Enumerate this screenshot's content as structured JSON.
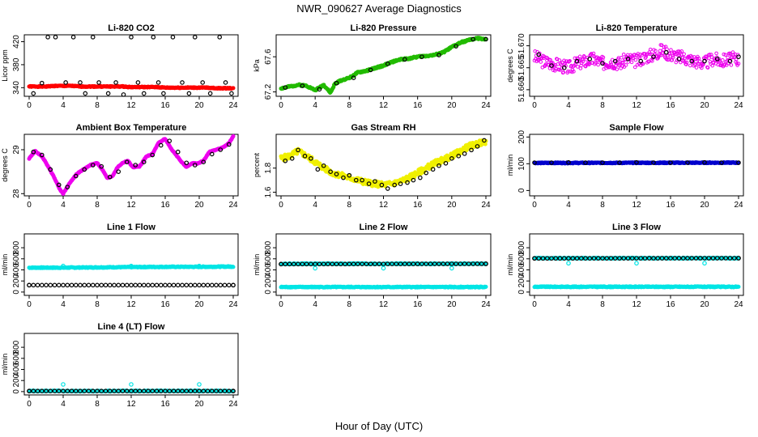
{
  "figure": {
    "title": "NWR_090627  Average Diagnostics",
    "xlabel": "Hour of Day (UTC)"
  },
  "chart_data": [
    {
      "type": "scatter",
      "title": "Li-820 CO2",
      "ylabel": "Licor ppm",
      "xlim": [
        0,
        24
      ],
      "ylim": [
        325,
        432
      ],
      "xticks": [
        0,
        4,
        8,
        12,
        16,
        20,
        24
      ],
      "yticks": [
        340,
        380,
        420
      ],
      "series": [
        {
          "name": "licor",
          "color": "#ff0000",
          "marker": "fill",
          "x": [
            0,
            1,
            2,
            3,
            4,
            5,
            6,
            7,
            8,
            9,
            10,
            11,
            12,
            13,
            14,
            15,
            16,
            17,
            18,
            19,
            20,
            21,
            22,
            23,
            24
          ],
          "y": [
            342,
            342,
            342,
            343,
            343,
            343,
            342,
            342,
            342,
            342,
            342,
            342,
            341,
            341,
            341,
            341,
            340,
            340,
            340,
            340,
            340,
            340,
            339,
            339,
            339
          ]
        },
        {
          "name": "averages",
          "color": "#000000",
          "marker": "open",
          "x": [
            0.5,
            1.5,
            2.2,
            3.1,
            4.3,
            5.2,
            6.0,
            6.6,
            7.5,
            8.2,
            9.3,
            10.2,
            11.1,
            12.0,
            12.8,
            13.5,
            14.6,
            15.2,
            15.8,
            16.9,
            18.0,
            18.8,
            19.5,
            20.4,
            21.3,
            22.4,
            23.1,
            23.8
          ],
          "y": [
            330,
            348,
            428,
            428,
            349,
            428,
            349,
            330,
            428,
            349,
            330,
            349,
            328,
            428,
            349,
            330,
            428,
            349,
            330,
            428,
            349,
            330,
            428,
            349,
            330,
            428,
            349,
            330
          ]
        }
      ]
    },
    {
      "type": "line",
      "title": "Li-820 Pressure",
      "ylabel": "kPa",
      "xlim": [
        0,
        24
      ],
      "ylim": [
        67.15,
        67.85
      ],
      "xticks": [
        0,
        4,
        8,
        12,
        16,
        20,
        24
      ],
      "yticks": [
        67.2,
        67.6
      ],
      "series": [
        {
          "name": "pressure",
          "color": "#22bb00",
          "x": [
            0,
            1,
            2,
            3,
            4,
            5,
            5.8,
            6.3,
            7,
            8,
            9,
            10,
            11,
            12,
            13,
            14,
            15,
            16,
            17,
            18,
            19,
            20,
            21,
            22,
            23,
            24
          ],
          "y": [
            67.24,
            67.26,
            67.28,
            67.27,
            67.22,
            67.28,
            67.19,
            67.29,
            67.33,
            67.36,
            67.42,
            67.44,
            67.47,
            67.5,
            67.54,
            67.57,
            67.58,
            67.6,
            67.61,
            67.62,
            67.65,
            67.71,
            67.76,
            67.79,
            67.81,
            67.8
          ]
        },
        {
          "name": "averages",
          "color": "#000000",
          "x": [
            0.5,
            2.5,
            4.5,
            6.5,
            8.5,
            10.5,
            12.5,
            14.5,
            16.5,
            18.5,
            20.5,
            22.5,
            24
          ],
          "y": [
            67.25,
            67.27,
            67.23,
            67.3,
            67.36,
            67.45,
            67.52,
            67.57,
            67.6,
            67.62,
            67.72,
            67.8,
            67.8
          ]
        }
      ]
    },
    {
      "type": "scatter",
      "title": "Li-820 Temperature",
      "ylabel": "degrees C",
      "xlim": [
        0,
        24
      ],
      "ylim": [
        51.6585,
        51.6725
      ],
      "xticks": [
        0,
        4,
        8,
        12,
        16,
        20,
        24
      ],
      "yticks": [
        51.66,
        51.665,
        51.67
      ],
      "series": [
        {
          "name": "temperature",
          "color": "#ee00ee",
          "x": [
            0,
            1,
            2,
            3,
            4,
            5,
            6,
            7,
            8,
            9,
            10,
            11,
            12,
            13,
            14,
            15,
            16,
            17,
            18,
            19,
            20,
            21,
            22,
            23,
            24
          ],
          "y": [
            51.6675,
            51.6665,
            51.666,
            51.6655,
            51.665,
            51.666,
            51.6665,
            51.667,
            51.666,
            51.6665,
            51.666,
            51.667,
            51.6665,
            51.6675,
            51.668,
            51.669,
            51.668,
            51.6675,
            51.667,
            51.6665,
            51.666,
            51.667,
            51.6665,
            51.667,
            51.667
          ]
        },
        {
          "name": "averages",
          "color": "#000000",
          "x": [
            0.5,
            2,
            3.5,
            5,
            6.5,
            8,
            9.5,
            11,
            12.5,
            14,
            15.5,
            17,
            18.5,
            20,
            21.5,
            23,
            24
          ],
          "y": [
            51.668,
            51.6655,
            51.665,
            51.6665,
            51.667,
            51.666,
            51.6665,
            51.667,
            51.6665,
            51.6675,
            51.6685,
            51.667,
            51.6665,
            51.6665,
            51.667,
            51.6665,
            51.6675
          ]
        }
      ]
    },
    {
      "type": "line",
      "title": "Ambient Box Temperature",
      "ylabel": "degrees C",
      "xlim": [
        0,
        24
      ],
      "ylim": [
        27.95,
        29.35
      ],
      "xticks": [
        0,
        4,
        8,
        12,
        16,
        20,
        24
      ],
      "yticks": [
        28.0,
        29.0
      ],
      "series": [
        {
          "name": "temperature",
          "color": "#ee00ee",
          "x": [
            0,
            0.7,
            1.5,
            2.3,
            3,
            3.6,
            4,
            4.8,
            5.6,
            6.4,
            7.2,
            8,
            8.6,
            9.2,
            9.8,
            10.4,
            11,
            11.6,
            12.2,
            13,
            13.8,
            14.5,
            15.2,
            16,
            16.6,
            17.2,
            17.8,
            18.5,
            19.2,
            19.8,
            20.5,
            21.2,
            22,
            22.8,
            23.5,
            24
          ],
          "y": [
            28.8,
            28.97,
            28.85,
            28.6,
            28.35,
            28.1,
            28.0,
            28.25,
            28.45,
            28.55,
            28.65,
            28.7,
            28.55,
            28.35,
            28.4,
            28.6,
            28.7,
            28.75,
            28.6,
            28.62,
            28.85,
            28.9,
            29.15,
            29.25,
            29.05,
            28.9,
            28.75,
            28.6,
            28.7,
            28.68,
            28.75,
            28.95,
            29.0,
            29.05,
            29.15,
            29.3
          ]
        },
        {
          "name": "averages",
          "color": "#000000",
          "x": [
            0.5,
            1.5,
            2.5,
            3.5,
            4.5,
            5.5,
            6.5,
            7.5,
            8.5,
            9.5,
            10.5,
            11.5,
            12.5,
            13.5,
            14.5,
            15.5,
            16.5,
            17.5,
            18.5,
            19.5,
            20.5,
            21.5,
            22.5,
            23.5
          ],
          "y": [
            28.95,
            28.88,
            28.55,
            28.2,
            28.15,
            28.4,
            28.55,
            28.65,
            28.62,
            28.38,
            28.5,
            28.72,
            28.65,
            28.72,
            28.88,
            29.1,
            29.2,
            28.95,
            28.7,
            28.65,
            28.72,
            28.9,
            29.0,
            29.12
          ]
        }
      ]
    },
    {
      "type": "scatter",
      "title": "Gas Stream RH",
      "ylabel": "percent",
      "xlim": [
        0,
        24
      ],
      "ylim": [
        1.57,
        2.08
      ],
      "xticks": [
        0,
        4,
        8,
        12,
        16,
        20,
        24
      ],
      "yticks": [
        1.6,
        1.8
      ],
      "series": [
        {
          "name": "rh",
          "color": "#f0f000",
          "x": [
            0,
            1,
            2,
            3,
            4,
            5,
            6,
            7,
            8,
            9,
            10,
            11,
            12,
            13,
            14,
            15,
            16,
            17,
            18,
            19,
            20,
            21,
            22,
            23,
            24
          ],
          "y": [
            1.88,
            1.9,
            1.94,
            1.9,
            1.85,
            1.8,
            1.76,
            1.74,
            1.72,
            1.7,
            1.68,
            1.67,
            1.66,
            1.67,
            1.69,
            1.72,
            1.76,
            1.8,
            1.84,
            1.87,
            1.9,
            1.94,
            1.98,
            2.0,
            2.02
          ]
        },
        {
          "name": "averages",
          "color": "#000000",
          "x": [
            0.5,
            1.3,
            2,
            2.8,
            3.5,
            4.3,
            5,
            5.8,
            6.5,
            7.3,
            8,
            8.8,
            9.5,
            10.3,
            11,
            11.8,
            12.5,
            13.3,
            14,
            14.8,
            15.5,
            16.3,
            17,
            17.8,
            18.5,
            19.3,
            20,
            20.8,
            21.5,
            22.3,
            23,
            23.8
          ],
          "y": [
            1.86,
            1.88,
            1.95,
            1.9,
            1.88,
            1.79,
            1.82,
            1.77,
            1.75,
            1.72,
            1.74,
            1.7,
            1.7,
            1.67,
            1.69,
            1.66,
            1.63,
            1.66,
            1.67,
            1.68,
            1.7,
            1.72,
            1.76,
            1.79,
            1.82,
            1.84,
            1.88,
            1.9,
            1.92,
            1.95,
            1.98,
            2.03
          ]
        }
      ]
    },
    {
      "type": "line",
      "title": "Sample Flow",
      "ylabel": "ml/min",
      "xlim": [
        0,
        24
      ],
      "ylim": [
        -20,
        210
      ],
      "xticks": [
        0,
        4,
        8,
        12,
        16,
        20,
        24
      ],
      "yticks": [
        0,
        100,
        200
      ],
      "series": [
        {
          "name": "flow",
          "color": "#0000cc",
          "x": [
            0,
            24
          ],
          "y": [
            103,
            104
          ]
        },
        {
          "name": "averages",
          "color": "#000000",
          "x": [
            0,
            2,
            4,
            6,
            8,
            10,
            12,
            14,
            16,
            18,
            20,
            22,
            24
          ],
          "y": [
            104,
            104,
            105,
            104,
            104,
            104,
            105,
            104,
            104,
            104,
            105,
            104,
            104
          ]
        }
      ]
    },
    {
      "type": "line",
      "title": "Line 1 Flow",
      "ylabel": "ml/min",
      "xlim": [
        0,
        24
      ],
      "ylim": [
        -60,
        1050
      ],
      "xticks": [
        0,
        4,
        8,
        12,
        16,
        20,
        24
      ],
      "yticks": [
        0,
        200,
        400,
        600,
        800
      ],
      "series": [
        {
          "name": "flow",
          "color": "#00e5e5",
          "x": [
            0,
            4,
            8,
            12,
            16,
            20,
            24
          ],
          "y": [
            440,
            440,
            445,
            450,
            455,
            455,
            460
          ]
        },
        {
          "name": "averages",
          "color": "#000000",
          "x": [
            0,
            24
          ],
          "y": [
            125,
            125
          ]
        }
      ]
    },
    {
      "type": "line",
      "title": "Line 2 Flow",
      "ylabel": "ml/min",
      "xlim": [
        0,
        24
      ],
      "ylim": [
        -60,
        1050
      ],
      "xticks": [
        0,
        4,
        8,
        12,
        16,
        20,
        24
      ],
      "yticks": [
        0,
        200,
        400,
        600,
        800
      ],
      "series": [
        {
          "name": "flow",
          "color": "#00e5e5",
          "x": [
            0,
            24
          ],
          "y": [
            90,
            90
          ]
        },
        {
          "name": "flow2",
          "color": "#00e5e5",
          "x": [
            0,
            24
          ],
          "y": [
            510,
            510
          ]
        },
        {
          "name": "averages",
          "color": "#000000",
          "x": [
            0,
            24
          ],
          "y": [
            505,
            510
          ]
        }
      ]
    },
    {
      "type": "line",
      "title": "Line 3 Flow",
      "ylabel": "ml/min",
      "xlim": [
        0,
        24
      ],
      "ylim": [
        -60,
        1050
      ],
      "xticks": [
        0,
        4,
        8,
        12,
        16,
        20,
        24
      ],
      "yticks": [
        0,
        200,
        400,
        600,
        800
      ],
      "series": [
        {
          "name": "flow",
          "color": "#00e5e5",
          "x": [
            0,
            24
          ],
          "y": [
            95,
            95
          ]
        },
        {
          "name": "flow2",
          "color": "#00e5e5",
          "x": [
            0,
            24
          ],
          "y": [
            610,
            612
          ]
        },
        {
          "name": "averages",
          "color": "#000000",
          "x": [
            0,
            24
          ],
          "y": [
            608,
            612
          ]
        }
      ]
    },
    {
      "type": "line",
      "title": "Line 4 (LT) Flow",
      "ylabel": "ml/min",
      "xlim": [
        0,
        24
      ],
      "ylim": [
        -60,
        1050
      ],
      "xticks": [
        0,
        4,
        8,
        12,
        16,
        20,
        24
      ],
      "yticks": [
        0,
        200,
        400,
        600,
        800
      ],
      "series": [
        {
          "name": "flow",
          "color": "#00e5e5",
          "x": [
            0,
            24
          ],
          "y": [
            10,
            10
          ]
        },
        {
          "name": "averages",
          "color": "#000000",
          "x": [
            0,
            24
          ],
          "y": [
            10,
            10
          ]
        }
      ]
    }
  ]
}
